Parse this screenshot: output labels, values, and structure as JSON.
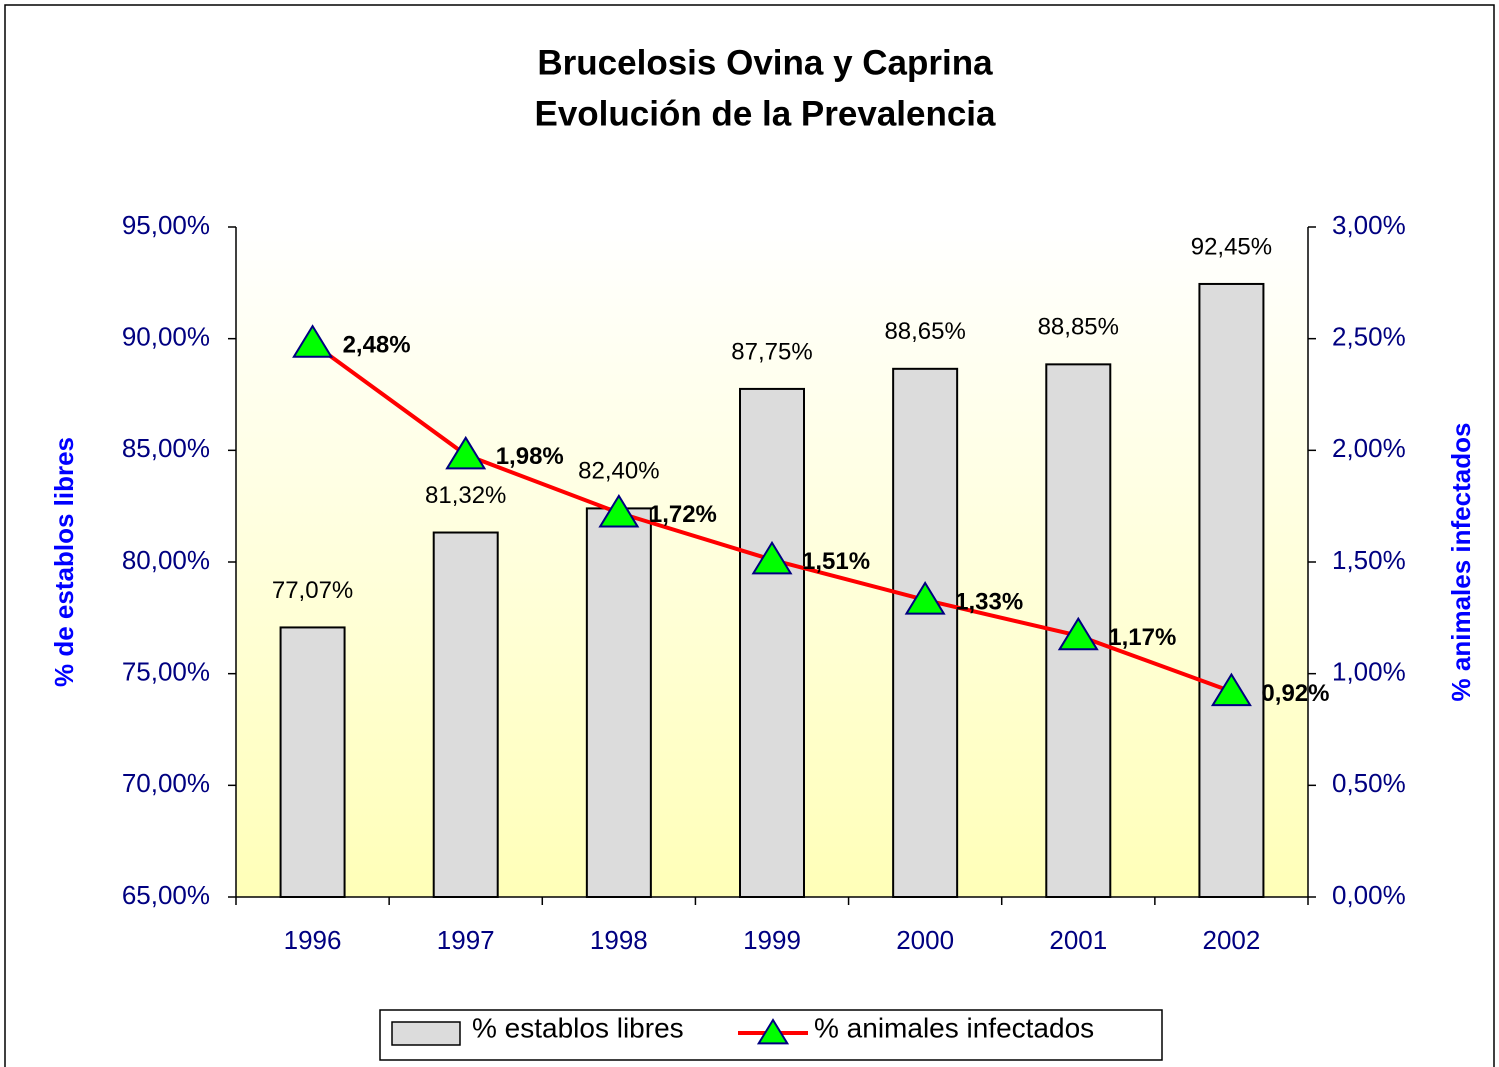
{
  "chart_data": {
    "type": "bar_line",
    "title": [
      "Brucelosis Ovina y Caprina",
      "Evolución de la Prevalencia"
    ],
    "ylabel": "% de establos libres",
    "y2label": "% animales infectados",
    "categories": [
      "1996",
      "1997",
      "1998",
      "1999",
      "2000",
      "2001",
      "2002"
    ],
    "series": [
      {
        "name": "% establos libres",
        "type": "bar",
        "color": "#dcdcdc",
        "values": [
          77.07,
          81.32,
          82.4,
          87.75,
          88.65,
          88.85,
          92.45
        ],
        "value_labels": [
          "77,07%",
          "81,32%",
          "82,40%",
          "87,75%",
          "88,65%",
          "88,85%",
          "92,45%"
        ]
      },
      {
        "name": "% animales infectados",
        "type": "line",
        "axis": "y2",
        "color": "#ff0000",
        "marker_color": "#00ff00",
        "values": [
          2.48,
          1.98,
          1.72,
          1.51,
          1.33,
          1.17,
          0.92
        ],
        "value_labels": [
          "2,48%",
          "1,98%",
          "1,72%",
          "1,51%",
          "1,33%",
          "1,17%",
          "0,92%"
        ]
      }
    ],
    "ylim": [
      65,
      95
    ],
    "yticks": [
      {
        "value": 65,
        "label": "65,00%"
      },
      {
        "value": 70,
        "label": "70,00%"
      },
      {
        "value": 75,
        "label": "75,00%"
      },
      {
        "value": 80,
        "label": "80,00%"
      },
      {
        "value": 85,
        "label": "85,00%"
      },
      {
        "value": 90,
        "label": "90,00%"
      },
      {
        "value": 95,
        "label": "95,00%"
      }
    ],
    "y2lim": [
      0,
      3
    ],
    "y2ticks": [
      {
        "value": 0,
        "label": "0,00%"
      },
      {
        "value": 0.5,
        "label": "0,50%"
      },
      {
        "value": 1,
        "label": "1,00%"
      },
      {
        "value": 1.5,
        "label": "1,50%"
      },
      {
        "value": 2,
        "label": "2,00%"
      },
      {
        "value": 2.5,
        "label": "2,50%"
      },
      {
        "value": 3,
        "label": "3,00%"
      }
    ],
    "legend": "bottom"
  }
}
